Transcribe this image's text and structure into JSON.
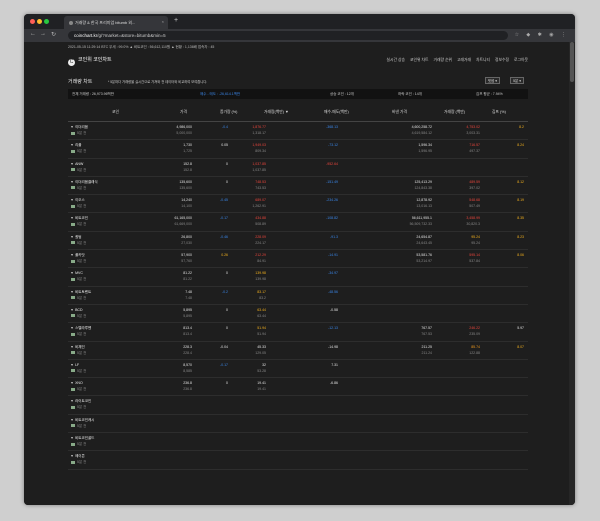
{
  "browser": {
    "tab_title": "거래량 & 한국 프리미엄 bitumb 외...",
    "url_domain": "coinchart.kr",
    "url_path": "/g/?market=&store=bitumb&min=5"
  },
  "ticker": "2021-05-15 11:29:14   BTC 우세 : 99.0% ▲   비트코인 : 56,612,110원 ▲   현황 : 1,136배   접속자 : 45",
  "header": {
    "logo_text": "코인위 코인차트",
    "menu": [
      "실시간 상승",
      "코인위 차트",
      "거래량 순위",
      "고래거래",
      "차트니티",
      "정보수정",
      "로그아웃"
    ]
  },
  "subheader": {
    "title": "거래량 차트",
    "note": "* 5분마다 거래량을 실시간으로 가져와 전 데이터와 비교하여 보여줍니다.",
    "select_exchange": "빗썸",
    "select_interval": "5분"
  },
  "summary": {
    "total_volume": "전체 거래량 : 26,973.96백만",
    "buy_sell": "매수 - 매도 : -26,614.1백만",
    "rise": "상승 코인 : 12개",
    "fall": "하락 코인 : 14개",
    "kimp_avg": "김프 평균 : 7.94%"
  },
  "columns": [
    "코인",
    "가격",
    "증가량 (%)",
    "거래량(백만) ▼",
    "매수-매도(백만)",
    "바낸 가격",
    "거래량 (백만)",
    "김프 (%)"
  ],
  "rows": [
    {
      "name": "이더리움",
      "time": "5분 전",
      "price": "4,986,000",
      "price2": "5,000,000",
      "inc": "-0.4",
      "inc_c": "dn",
      "vol": "1,876.77",
      "vol_c": "up",
      "vol2": "1,318.17",
      "net": "-368.13",
      "net_c": "dn",
      "bin": "4,600,258.72",
      "bin2": "4,619,584.12",
      "bvol": "4,753.02",
      "bvol_c": "up",
      "bvol2": "3,003.31",
      "kimp": "8.2",
      "kimp_c": "yel"
    },
    {
      "name": "리플",
      "time": "5분 전",
      "price": "1,730",
      "price2": "1,725",
      "inc": "0.05",
      "inc_c": "grn",
      "vol": "1,949.03",
      "vol_c": "up",
      "vol2": "809.34",
      "net": "-73.12",
      "net_c": "dn",
      "bin": "1,596.34",
      "bin2": "1,596.95",
      "bvol": "716.57",
      "bvol_c": "up",
      "bvol2": "497.37",
      "kimp": "8.24",
      "kimp_c": "yel"
    },
    {
      "name": "ANW",
      "time": "5분 전",
      "price": "152.8",
      "price2": "152.8",
      "inc": "0",
      "inc_c": "grn",
      "vol": "1,037.85",
      "vol_c": "up",
      "vol2": "1,037.85",
      "net": "-952.64",
      "net_c": "up",
      "bin": "",
      "bin2": "",
      "bvol": "",
      "bvol_c": "up",
      "bvol2": "",
      "kimp": "",
      "kimp_c": "yel"
    },
    {
      "name": "이더리움클래식",
      "time": "5분 전",
      "price": "135,600",
      "price2": "135,600",
      "inc": "0",
      "inc_c": "grn",
      "vol": "748.53",
      "vol_c": "up",
      "vol2": "743.53",
      "net": "-151.49",
      "net_c": "dn",
      "bin": "125,413.29",
      "bin2": "124,843.38",
      "bvol": "489.59",
      "bvol_c": "up",
      "bvol2": "397.02",
      "kimp": "8.12",
      "kimp_c": "yel"
    },
    {
      "name": "이오스",
      "time": "5분 전",
      "price": "14,240",
      "price2": "14,100",
      "inc": "-0.45",
      "inc_c": "dn",
      "vol": "689.07",
      "vol_c": "up",
      "vol2": "1,262.91",
      "net": "-234.26",
      "net_c": "dn",
      "bin": "12,878.92",
      "bin2": "13,016.13",
      "bvol": "548.68",
      "bvol_c": "up",
      "bvol2": "507.49",
      "kimp": "8.19",
      "kimp_c": "yel"
    },
    {
      "name": "비트코인",
      "time": "5분 전",
      "price": "61,165,000",
      "price2": "61,669,000",
      "inc": "-0.17",
      "inc_c": "dn",
      "vol": "434.88",
      "vol_c": "up",
      "vol2": "508.89",
      "net": "-108.82",
      "net_c": "dn",
      "bin": "56,611,955.1",
      "bin2": "56,509,732.33",
      "bvol": "3,458.99",
      "bvol_c": "up",
      "bvol2": "30,820.3",
      "kimp": "8.35",
      "kimp_c": "yel"
    },
    {
      "name": "퀀텀",
      "time": "5분 전",
      "price": "26,800",
      "price2": "27,030",
      "inc": "-0.46",
      "inc_c": "dn",
      "vol": "228.09",
      "vol_c": "up",
      "vol2": "224.17",
      "net": "-91.3",
      "net_c": "dn",
      "bin": "24,654.87",
      "bin2": "24,643.45",
      "bvol": "95.24",
      "bvol_c": "yel",
      "bvol2": "95.24",
      "kimp": "8.23",
      "kimp_c": "yel"
    },
    {
      "name": "폴카닷",
      "time": "5분 전",
      "price": "57,900",
      "price2": "57,760",
      "inc": "0.26",
      "inc_c": "yel",
      "vol": "212.29",
      "vol_c": "up",
      "vol2": "84.91",
      "net": "-14.91",
      "net_c": "dn",
      "bin": "53,581.76",
      "bin2": "53,214.97",
      "bvol": "595.14",
      "bvol_c": "up",
      "bvol2": "537.84",
      "kimp": "8.06",
      "kimp_c": "yel"
    },
    {
      "name": "MVC",
      "time": "5분 전",
      "price": "81.22",
      "price2": "81.22",
      "inc": "0",
      "inc_c": "grn",
      "vol": "139.98",
      "vol_c": "yel",
      "vol2": "139.98",
      "net": "-34.97",
      "net_c": "dn",
      "bin": "",
      "bin2": "",
      "bvol": "",
      "bvol_c": "up",
      "bvol2": "",
      "kimp": "",
      "kimp_c": "yel"
    },
    {
      "name": "비트토렌트",
      "time": "5분 전",
      "price": "7.48",
      "price2": "7.48",
      "inc": "-0.2",
      "inc_c": "dn",
      "vol": "83.17",
      "vol_c": "yel",
      "vol2": "83.2",
      "net": "-48.56",
      "net_c": "dn",
      "bin": "",
      "bin2": "",
      "bvol": "",
      "bvol_c": "up",
      "bvol2": "",
      "kimp": "",
      "kimp_c": "yel"
    },
    {
      "name": "BCD",
      "time": "5분 전",
      "price": "5,895",
      "price2": "5,895",
      "inc": "0",
      "inc_c": "grn",
      "vol": "63.44",
      "vol_c": "yel",
      "vol2": "63.44",
      "net": "-0.58",
      "net_c": "grn",
      "bin": "",
      "bin2": "",
      "bvol": "",
      "bvol_c": "up",
      "bvol2": "",
      "kimp": "",
      "kimp_c": "yel"
    },
    {
      "name": "스텔라루멘",
      "time": "5분 전",
      "price": "813.4",
      "price2": "813.4",
      "inc": "0",
      "inc_c": "grn",
      "vol": "51.94",
      "vol_c": "yel",
      "vol2": "51.94",
      "net": "-12.13",
      "net_c": "dn",
      "bin": "767.57",
      "bin2": "767.53",
      "bvol": "246.22",
      "bvol_c": "up",
      "bvol2": "235.09",
      "kimp": "5.97",
      "kimp_c": "grn"
    },
    {
      "name": "비체인",
      "time": "5분 전",
      "price": "228.3",
      "price2": "228.4",
      "inc": "-0.04",
      "inc_c": "grn",
      "vol": "45.33",
      "vol_c": "grn",
      "vol2": "129.05",
      "net": "-14.98",
      "net_c": "grn",
      "bin": "211.25",
      "bin2": "211.24",
      "bvol": "85.74",
      "bvol_c": "org",
      "bvol2": "122.88",
      "kimp": "8.07",
      "kimp_c": "yel"
    },
    {
      "name": "LF",
      "time": "5분 전",
      "price": "8,570",
      "price2": "8,585",
      "inc": "-0.17",
      "inc_c": "dn",
      "vol": "32",
      "vol_c": "grn",
      "vol2": "53.28",
      "net": "7.31",
      "net_c": "grn",
      "bin": "",
      "bin2": "",
      "bvol": "",
      "bvol_c": "up",
      "bvol2": "",
      "kimp": "",
      "kimp_c": "yel"
    },
    {
      "name": "XNO",
      "time": "5분 전",
      "price": "236.8",
      "price2": "236.8",
      "inc": "0",
      "inc_c": "grn",
      "vol": "19.41",
      "vol_c": "grn",
      "vol2": "19.41",
      "net": "-6.86",
      "net_c": "grn",
      "bin": "",
      "bin2": "",
      "bvol": "",
      "bvol_c": "up",
      "bvol2": "",
      "kimp": "",
      "kimp_c": "yel"
    },
    {
      "name": "라이트코인",
      "time": "5분 전",
      "price": "",
      "price2": "",
      "inc": "",
      "inc_c": "grn",
      "vol": "",
      "vol_c": "grn",
      "vol2": "",
      "net": "",
      "net_c": "grn",
      "bin": "",
      "bin2": "",
      "bvol": "",
      "bvol_c": "up",
      "bvol2": "",
      "kimp": "",
      "kimp_c": "yel"
    },
    {
      "name": "비트코인캐시",
      "time": "5분 전",
      "price": "",
      "price2": "",
      "inc": "",
      "inc_c": "grn",
      "vol": "",
      "vol_c": "grn",
      "vol2": "",
      "net": "",
      "net_c": "grn",
      "bin": "",
      "bin2": "",
      "bvol": "",
      "bvol_c": "up",
      "bvol2": "",
      "kimp": "",
      "kimp_c": "yel"
    },
    {
      "name": "비트코인골드",
      "time": "5분 전",
      "price": "",
      "price2": "",
      "inc": "",
      "inc_c": "grn",
      "vol": "",
      "vol_c": "grn",
      "vol2": "",
      "net": "",
      "net_c": "grn",
      "bin": "",
      "bin2": "",
      "bvol": "",
      "bvol_c": "up",
      "bvol2": "",
      "kimp": "",
      "kimp_c": "yel"
    },
    {
      "name": "에이콘",
      "time": "5분 전",
      "price": "",
      "price2": "",
      "inc": "",
      "inc_c": "grn",
      "vol": "",
      "vol_c": "grn",
      "vol2": "",
      "net": "",
      "net_c": "grn",
      "bin": "",
      "bin2": "",
      "bvol": "",
      "bvol_c": "up",
      "bvol2": "",
      "kimp": "",
      "kimp_c": "yel"
    }
  ],
  "colors": {
    "up": "#e8453c",
    "down": "#3a86e8",
    "kimp": "#f2b01e"
  }
}
